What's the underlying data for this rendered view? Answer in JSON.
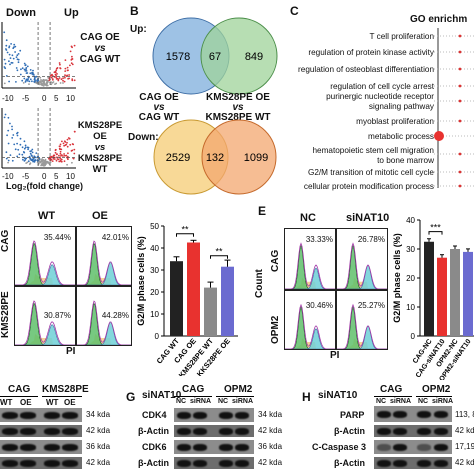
{
  "panelA": {
    "up_label": "Up",
    "down_label": "Down",
    "plots": [
      {
        "line1": "CAG OE",
        "line2": "vs",
        "line3": "CAG WT"
      },
      {
        "line1": "KMS28PE OE",
        "line2": "vs",
        "line3": "KMS28PE WT"
      }
    ],
    "xticks": [
      "-10",
      "-5",
      "0",
      "5",
      "10"
    ],
    "xlabel": "Log₂(fold change)",
    "colors": {
      "up": "#d9343b",
      "down": "#2f6db5",
      "ns": "#9a9a9a"
    }
  },
  "panelB": {
    "letter": "B",
    "up_title": "Up:",
    "down_title": "Down:",
    "up_venn": {
      "left": "1578",
      "overlap": "67",
      "right": "849",
      "left_color": "#8db7e0",
      "right_color": "#9fd39a"
    },
    "down_venn": {
      "left": "2529",
      "overlap": "132",
      "right": "1099",
      "left_color": "#f7d58c",
      "right_color": "#f3a76f"
    },
    "set_left": {
      "line1": "CAG OE",
      "line2": "vs",
      "line3": "CAG WT"
    },
    "set_right": {
      "line1": "KMS28PE OE",
      "line2": "vs",
      "line3": "KMS28PE WT"
    }
  },
  "panelC": {
    "letter": "C",
    "title": "GO enrichm",
    "terms": [
      "T cell proliferation",
      "regulation of protein kinase activity",
      "regulation of osteoblast differentiation",
      "regulation of cell cycle arrest",
      "purinergic nucleotide receptor",
      "signaling pathway",
      "myoblast proliferation",
      "metabolic process",
      "hematopoietic stem cell migration",
      "to bone marrow",
      "G2/M transition of mitotic cell cycle",
      "cellular protein modification process"
    ],
    "highlight_color": "#e8322f"
  },
  "panelD": {
    "col_wt": "WT",
    "col_oe": "OE",
    "row_cag": "CAG",
    "row_kms": "KMS28PE",
    "pcts": [
      "35.44%",
      "42.01%",
      "30.87%",
      "44.28%"
    ],
    "xlabel": "PI",
    "bar_ylabel": "G2/M phase cells (%)",
    "bar_yticks": [
      "0",
      "10",
      "20",
      "30",
      "40",
      "50"
    ],
    "sig1": "**",
    "sig2": "**"
  },
  "chart_data": {
    "type": "bar",
    "categories": [
      "CAG WT",
      "CAG OE",
      "KMS28PE WT",
      "KKS28PE OE"
    ],
    "values": [
      34,
      42.5,
      22,
      31.5
    ],
    "errors": [
      2,
      1,
      2.5,
      3
    ],
    "colors": [
      "#222222",
      "#e8322f",
      "#8a8a8a",
      "#6b6bd0"
    ],
    "ylabel": "G2/M phase cells (%)",
    "ylim": [
      0,
      50
    ]
  },
  "panelE": {
    "letter": "E",
    "col_nc": "NC",
    "col_si": "siNAT10",
    "row_cag": "CAG",
    "row_opm": "OPM2",
    "ylabel": "Count",
    "xlabel": "PI",
    "pcts": [
      "33.33%",
      "26.78%",
      "30.46%",
      "25.27%"
    ],
    "bar_ylabel": "G2/M phase cells (%)",
    "bar_yticks": [
      "0",
      "10",
      "20",
      "30",
      "40"
    ],
    "bar_categories": [
      "CAG-NC",
      "CAG-siNAT10",
      "OPM2-NC",
      "OPM2-siNAT10"
    ],
    "bar_values": [
      32.5,
      27,
      30,
      29
    ],
    "bar_colors": [
      "#222222",
      "#e8322f",
      "#8a8a8a",
      "#6b6bd0"
    ],
    "sig": "***"
  },
  "panelF": {
    "col_cag": "CAG",
    "col_kms": "KMS28PE",
    "sub": [
      "WT",
      "OE",
      "WT",
      "OE"
    ],
    "sizes": [
      "34 kda",
      "42 kda",
      "36 kda",
      "42 kda"
    ]
  },
  "panelG": {
    "letter": "G",
    "title": "siNAT10",
    "col_cag": "CAG",
    "col_opm": "OPM2",
    "sub": [
      "NC",
      "siRNA",
      "NC",
      "siRNA"
    ],
    "rows": [
      "CDK4",
      "β-Actin",
      "CDK6",
      "β-Actin"
    ],
    "sizes": [
      "34 kda",
      "42 kda",
      "36 kda",
      "42 kda"
    ]
  },
  "panelH": {
    "letter": "H",
    "title": "siNAT10",
    "col_cag": "CAG",
    "col_opm": "OPM2",
    "sub": [
      "NC",
      "siRNA",
      "NC",
      "siRNA"
    ],
    "rows": [
      "PARP",
      "β-Actin",
      "C-Caspase 3",
      "β-Actin"
    ],
    "sizes": [
      "113, 8",
      "42 kd",
      "17,19",
      "42 kd"
    ]
  }
}
